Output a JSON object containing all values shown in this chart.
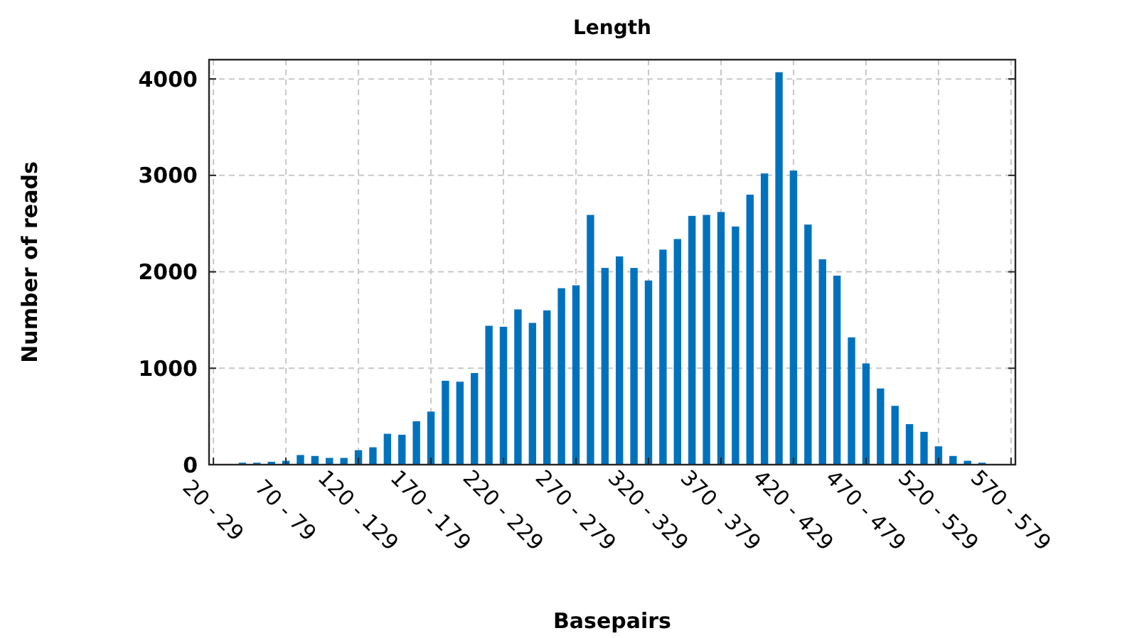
{
  "chart_data": {
    "type": "bar",
    "title": "Length",
    "xlabel": "Basepairs",
    "ylabel": "Number of reads",
    "categories": [
      "20 - 29",
      null,
      null,
      null,
      null,
      "70 - 79",
      null,
      null,
      null,
      null,
      "120 - 129",
      null,
      null,
      null,
      null,
      "170 - 179",
      null,
      null,
      null,
      null,
      "220 - 229",
      null,
      null,
      null,
      null,
      "270 - 279",
      null,
      null,
      null,
      null,
      "320 - 329",
      null,
      null,
      null,
      null,
      "370 - 379",
      null,
      null,
      null,
      null,
      "420 - 429",
      null,
      null,
      null,
      null,
      "470 - 479",
      null,
      null,
      null,
      null,
      "520 - 529",
      null,
      null,
      null,
      null,
      "570 - 579"
    ],
    "values": [
      0,
      0,
      20,
      20,
      30,
      40,
      100,
      90,
      70,
      70,
      150,
      180,
      320,
      310,
      450,
      550,
      870,
      860,
      950,
      1440,
      1430,
      1610,
      1470,
      1600,
      1830,
      1860,
      2590,
      2040,
      2160,
      2040,
      1910,
      2230,
      2340,
      2580,
      2590,
      2620,
      2470,
      2800,
      3020,
      4070,
      3050,
      2490,
      2130,
      1960,
      1320,
      1050,
      790,
      610,
      420,
      340,
      190,
      90,
      40,
      20,
      0,
      0
    ],
    "color": "#0072bd",
    "ylim": [
      0,
      4200
    ],
    "yticks": [
      0,
      1000,
      2000,
      3000,
      4000
    ],
    "grid": true
  }
}
